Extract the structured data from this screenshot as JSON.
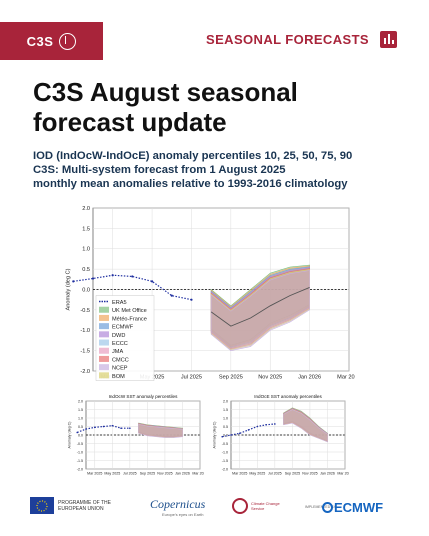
{
  "header": {
    "logo_label": "C3S",
    "section_title": "SEASONAL FORECASTS",
    "brand_color": "#a8243a",
    "icon": "bar-chart-icon"
  },
  "headline": "C3S August seasonal forecast update",
  "subtitle_lines": [
    "IOD (IndOcW-IndOcE) anomaly percentiles 10, 25, 50, 75, 90",
    "C3S: Multi-system forecast from 1 August 2025",
    "monthly mean anomalies relative to 1993-2016 climatology"
  ],
  "footer": {
    "eu_label": "PROGRAMME OF THE EUROPEAN UNION",
    "copernicus_label": "Copernicus",
    "copernicus_sub": "Europe's eyes on Earth",
    "ccs_label": "Climate Change Service",
    "implemented_by": "IMPLEMENTED BY",
    "ecmwf_label": "ECMWF"
  },
  "chart_data": [
    {
      "type": "line",
      "ylabel": "Anomaly (deg C)",
      "ylim": [
        -2.0,
        2.0
      ],
      "yticks": [
        "2.0",
        "1.5",
        "1.0",
        "0.5",
        "0.0",
        "-0.5",
        "-1.0",
        "-1.5",
        "-2.0"
      ],
      "xticks": [
        "Mar 2025",
        "May 2025",
        "Jul 2025",
        "Sep 2025",
        "Nov 2025",
        "Jan 2026",
        "Mar 2026"
      ],
      "grid": true,
      "legend_position": "lower-left",
      "legend": [
        {
          "name": "ERA5",
          "color": "#1f2fa0",
          "style": "dotted"
        },
        {
          "name": "UK Met Office",
          "color": "#7fbf7f"
        },
        {
          "name": "Météo-France",
          "color": "#f0a860"
        },
        {
          "name": "ECMWF",
          "color": "#6fa0d8"
        },
        {
          "name": "DWD",
          "color": "#b08ad8"
        },
        {
          "name": "ECCC",
          "color": "#a0c8e8"
        },
        {
          "name": "JMA",
          "color": "#e8a0c0"
        },
        {
          "name": "CMCC",
          "color": "#e87070"
        },
        {
          "name": "NCEP",
          "color": "#c8b0e0"
        },
        {
          "name": "BOM",
          "color": "#d8d070"
        }
      ],
      "era5": {
        "x": [
          "2025-01",
          "2025-02",
          "2025-03",
          "2025-04",
          "2025-05",
          "2025-06",
          "2025-07"
        ],
        "values": [
          0.2,
          0.27,
          0.35,
          0.32,
          0.2,
          -0.15,
          -0.25
        ]
      },
      "forecast": {
        "x": [
          "2025-08",
          "2025-09",
          "2025-10",
          "2025-11",
          "2025-12",
          "2026-01"
        ],
        "p10": [
          -1.1,
          -1.5,
          -1.4,
          -1.0,
          -0.8,
          -0.5
        ],
        "p90": [
          0.0,
          -0.4,
          0.0,
          0.4,
          0.55,
          0.6
        ],
        "median": [
          -0.55,
          -0.9,
          -0.7,
          -0.4,
          -0.15,
          0.05
        ]
      }
    },
    {
      "type": "line",
      "title": "IndOcW SST anomaly percentiles",
      "ylabel": "Anomaly (deg C)",
      "ylim": [
        -2.0,
        2.0
      ],
      "xticks": [
        "Mar 2025",
        "May 2025",
        "Jul 2025",
        "Sep 2025",
        "Nov 2025",
        "Jan 2026",
        "Mar 2026"
      ],
      "era5": {
        "x": [
          "2025-01",
          "2025-02",
          "2025-03",
          "2025-04",
          "2025-05",
          "2025-06",
          "2025-07"
        ],
        "values": [
          0.15,
          0.35,
          0.45,
          0.5,
          0.55,
          0.4,
          0.4
        ]
      },
      "forecast": {
        "x": [
          "2025-08",
          "2025-09",
          "2025-10",
          "2025-11",
          "2025-12",
          "2026-01"
        ],
        "p10": [
          0.1,
          -0.05,
          -0.1,
          -0.15,
          -0.15,
          -0.1
        ],
        "p90": [
          0.7,
          0.6,
          0.55,
          0.5,
          0.45,
          0.4
        ]
      }
    },
    {
      "type": "line",
      "title": "IndOcE SST anomaly percentiles",
      "ylabel": "Anomaly (deg C)",
      "ylim": [
        -2.0,
        2.0
      ],
      "xticks": [
        "Mar 2025",
        "May 2025",
        "Jul 2025",
        "Sep 2025",
        "Nov 2025",
        "Jan 2026",
        "Mar 2026"
      ],
      "era5": {
        "x": [
          "2025-01",
          "2025-02",
          "2025-03",
          "2025-04",
          "2025-05",
          "2025-06",
          "2025-07"
        ],
        "values": [
          -0.1,
          0.0,
          0.1,
          0.3,
          0.5,
          0.6,
          0.65
        ]
      },
      "forecast": {
        "x": [
          "2025-08",
          "2025-09",
          "2025-10",
          "2025-11",
          "2025-12",
          "2026-01"
        ],
        "p10": [
          0.6,
          0.7,
          0.4,
          0.0,
          -0.2,
          -0.4
        ],
        "p90": [
          1.3,
          1.6,
          1.4,
          1.0,
          0.5,
          0.1
        ]
      }
    }
  ]
}
